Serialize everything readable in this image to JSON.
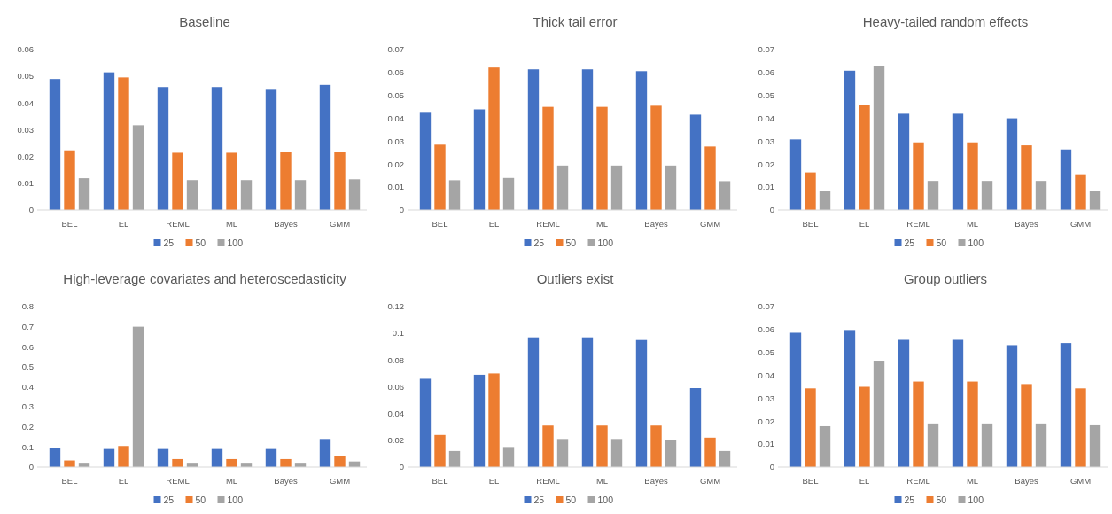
{
  "chart_data": [
    {
      "type": "bar",
      "title": "Baseline",
      "categories": [
        "BEL",
        "EL",
        "REML",
        "ML",
        "Bayes",
        "GMM"
      ],
      "ylim": [
        0,
        0.06
      ],
      "yticks": [
        0,
        0.01,
        0.02,
        0.03,
        0.04,
        0.05,
        0.06
      ],
      "grid": false,
      "legend": "bottom",
      "series": [
        {
          "name": "25",
          "color": "#4472c4",
          "values": [
            0.049,
            0.0515,
            0.046,
            0.046,
            0.0453,
            0.0468
          ]
        },
        {
          "name": "50",
          "color": "#ed7d31",
          "values": [
            0.0223,
            0.0496,
            0.0214,
            0.0214,
            0.0217,
            0.0217
          ]
        },
        {
          "name": "100",
          "color": "#a5a5a5",
          "values": [
            0.0119,
            0.0317,
            0.0112,
            0.0112,
            0.0112,
            0.0115
          ]
        }
      ]
    },
    {
      "type": "bar",
      "title": "Thick tail error",
      "categories": [
        "BEL",
        "EL",
        "REML",
        "ML",
        "Bayes",
        "GMM"
      ],
      "ylim": [
        0,
        0.07
      ],
      "yticks": [
        0,
        0.01,
        0.02,
        0.03,
        0.04,
        0.05,
        0.06,
        0.07
      ],
      "grid": false,
      "legend": "bottom",
      "series": [
        {
          "name": "25",
          "color": "#4472c4",
          "values": [
            0.0428,
            0.0439,
            0.0614,
            0.0614,
            0.0606,
            0.0416
          ]
        },
        {
          "name": "50",
          "color": "#ed7d31",
          "values": [
            0.0285,
            0.0622,
            0.045,
            0.045,
            0.0455,
            0.0277
          ]
        },
        {
          "name": "100",
          "color": "#a5a5a5",
          "values": [
            0.013,
            0.014,
            0.0194,
            0.0194,
            0.0194,
            0.0126
          ]
        }
      ]
    },
    {
      "type": "bar",
      "title": "Heavy-tailed random effects",
      "categories": [
        "BEL",
        "EL",
        "REML",
        "ML",
        "Bayes",
        "GMM"
      ],
      "ylim": [
        0,
        0.07
      ],
      "yticks": [
        0,
        0.01,
        0.02,
        0.03,
        0.04,
        0.05,
        0.06,
        0.07
      ],
      "grid": false,
      "legend": "bottom",
      "series": [
        {
          "name": "25",
          "color": "#4472c4",
          "values": [
            0.0308,
            0.0608,
            0.042,
            0.042,
            0.04,
            0.0264
          ]
        },
        {
          "name": "50",
          "color": "#ed7d31",
          "values": [
            0.0164,
            0.046,
            0.0295,
            0.0295,
            0.0282,
            0.0156
          ]
        },
        {
          "name": "100",
          "color": "#a5a5a5",
          "values": [
            0.0082,
            0.0627,
            0.0127,
            0.0127,
            0.0127,
            0.0082
          ]
        }
      ]
    },
    {
      "type": "bar",
      "title": "High-leverage covariates and heteroscedasticity",
      "categories": [
        "BEL",
        "EL",
        "REML",
        "ML",
        "Bayes",
        "GMM"
      ],
      "ylim": [
        0,
        0.8
      ],
      "yticks": [
        0,
        0.1,
        0.2,
        0.3,
        0.4,
        0.5,
        0.6,
        0.7,
        0.8
      ],
      "grid": false,
      "legend": "bottom",
      "series": [
        {
          "name": "25",
          "color": "#4472c4",
          "values": [
            0.095,
            0.09,
            0.09,
            0.09,
            0.09,
            0.14
          ]
        },
        {
          "name": "50",
          "color": "#ed7d31",
          "values": [
            0.033,
            0.105,
            0.04,
            0.04,
            0.04,
            0.055
          ]
        },
        {
          "name": "100",
          "color": "#a5a5a5",
          "values": [
            0.017,
            0.7,
            0.017,
            0.017,
            0.017,
            0.028
          ]
        }
      ]
    },
    {
      "type": "bar",
      "title": "Outliers exist",
      "categories": [
        "BEL",
        "EL",
        "REML",
        "ML",
        "Bayes",
        "GMM"
      ],
      "ylim": [
        0,
        0.12
      ],
      "yticks": [
        0,
        0.02,
        0.04,
        0.06,
        0.08,
        0.1,
        0.12
      ],
      "grid": false,
      "legend": "bottom",
      "series": [
        {
          "name": "25",
          "color": "#4472c4",
          "values": [
            0.066,
            0.069,
            0.097,
            0.097,
            0.095,
            0.059
          ]
        },
        {
          "name": "50",
          "color": "#ed7d31",
          "values": [
            0.024,
            0.07,
            0.031,
            0.031,
            0.031,
            0.022
          ]
        },
        {
          "name": "100",
          "color": "#a5a5a5",
          "values": [
            0.012,
            0.015,
            0.021,
            0.021,
            0.02,
            0.012
          ]
        }
      ]
    },
    {
      "type": "bar",
      "title": "Group outliers",
      "categories": [
        "BEL",
        "EL",
        "REML",
        "ML",
        "Bayes",
        "GMM"
      ],
      "ylim": [
        0,
        0.07
      ],
      "yticks": [
        0,
        0.01,
        0.02,
        0.03,
        0.04,
        0.05,
        0.06,
        0.07
      ],
      "grid": false,
      "legend": "bottom",
      "series": [
        {
          "name": "25",
          "color": "#4472c4",
          "values": [
            0.0586,
            0.0598,
            0.0555,
            0.0555,
            0.0532,
            0.0541
          ]
        },
        {
          "name": "50",
          "color": "#ed7d31",
          "values": [
            0.0343,
            0.035,
            0.0373,
            0.0373,
            0.0362,
            0.0343
          ]
        },
        {
          "name": "100",
          "color": "#a5a5a5",
          "values": [
            0.0178,
            0.0464,
            0.019,
            0.019,
            0.019,
            0.0182
          ]
        }
      ]
    }
  ]
}
